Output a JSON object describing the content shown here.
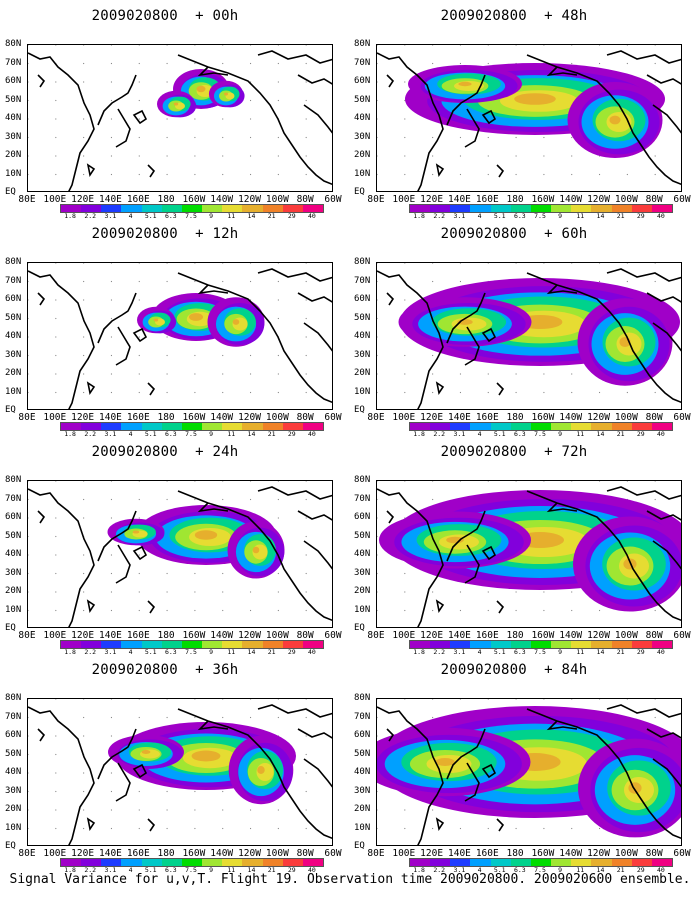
{
  "panels": [
    {
      "title": "2009020800  + 00h",
      "coverage": 0.2
    },
    {
      "title": "2009020800  + 12h",
      "coverage": 0.35
    },
    {
      "title": "2009020800  + 24h",
      "coverage": 0.5
    },
    {
      "title": "2009020800  + 36h",
      "coverage": 0.6
    },
    {
      "title": "2009020800  + 48h",
      "coverage": 0.75
    },
    {
      "title": "2009020800  + 60h",
      "coverage": 0.82
    },
    {
      "title": "2009020800  + 72h",
      "coverage": 0.88
    },
    {
      "title": "2009020800  + 84h",
      "coverage": 0.95
    }
  ],
  "latitude_labels": [
    "80N",
    "70N",
    "60N",
    "50N",
    "40N",
    "30N",
    "20N",
    "10N",
    "EQ"
  ],
  "longitude_labels": [
    "80E",
    "100E",
    "120E",
    "140E",
    "160E",
    "180",
    "160W",
    "140W",
    "120W",
    "100W",
    "80W",
    "60W"
  ],
  "colorbar": {
    "labels": [
      "1.8",
      "2.2",
      "3.1",
      "4",
      "5.1",
      "6.3",
      "7.5",
      "9",
      "11",
      "14",
      "21",
      "29",
      "40"
    ],
    "colors": [
      "#a000c8",
      "#8200dc",
      "#1e3cff",
      "#00a0ff",
      "#00c8c8",
      "#00d28c",
      "#00dc00",
      "#a0e632",
      "#e6dc32",
      "#e6af2d",
      "#f08228",
      "#fa3c3c",
      "#f00082"
    ]
  },
  "footer": "Signal Variance for u,v,T. Flight 19. Observation time 2009020800. 2009020600 ensemble."
}
